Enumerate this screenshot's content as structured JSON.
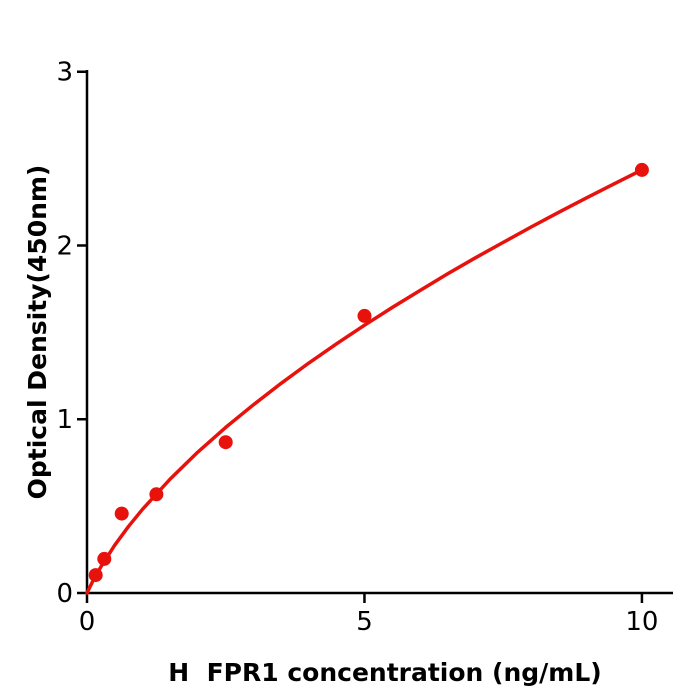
{
  "figure": {
    "background_color": "#ffffff",
    "axis_color": "#000000",
    "accent_color": "#e8120d"
  },
  "chart_data": {
    "type": "scatter",
    "title": "",
    "xlabel": "H  FPR1 concentration (ng/mL)",
    "ylabel": "Optical Density(450nm)",
    "xlim": [
      0,
      10.56
    ],
    "ylim": [
      0,
      3.01
    ],
    "x_ticks": [
      0,
      5,
      10
    ],
    "y_ticks": [
      0,
      1,
      2,
      3
    ],
    "grid": false,
    "legend": "none",
    "series": [
      {
        "name": "measured-points",
        "type": "scatter",
        "color": "#e8120d",
        "marker": "circle",
        "x": [
          0.156,
          0.3125,
          0.625,
          1.25,
          2.5,
          5,
          10
        ],
        "y": [
          0.103,
          0.196,
          0.457,
          0.568,
          0.868,
          1.595,
          2.435
        ]
      },
      {
        "name": "fitted-curve",
        "type": "line",
        "color": "#e8120d",
        "x": [
          0,
          0.1,
          0.25,
          0.5,
          0.75,
          1,
          1.5,
          2,
          2.5,
          3,
          3.5,
          4,
          4.5,
          5,
          5.5,
          6,
          6.5,
          7,
          7.5,
          8,
          8.5,
          9,
          9.5,
          10
        ],
        "y": [
          0,
          0.065,
          0.151,
          0.275,
          0.384,
          0.482,
          0.656,
          0.812,
          0.953,
          1.084,
          1.207,
          1.324,
          1.435,
          1.541,
          1.643,
          1.741,
          1.837,
          1.929,
          2.018,
          2.106,
          2.191,
          2.274,
          2.355,
          2.435
        ]
      }
    ]
  }
}
